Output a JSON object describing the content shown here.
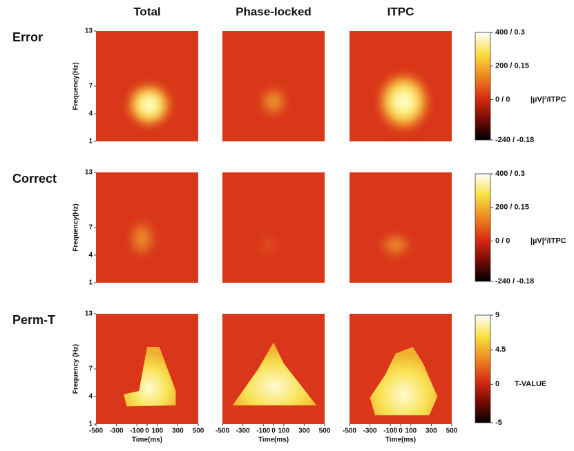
{
  "columns": [
    "Total",
    "Phase-locked",
    "ITPC"
  ],
  "rows": [
    {
      "label": "Error",
      "y_label": "Frequency(Hz)",
      "colorbar": {
        "clim": [
          -240,
          400
        ],
        "ticks": [
          {
            "value": 400,
            "label": "400 / 0.3"
          },
          {
            "value": 200,
            "label": "200 / 0.15"
          },
          {
            "value": 0,
            "label": "0 / 0"
          },
          {
            "value": -240,
            "label": "-240 / -0.18"
          }
        ],
        "unit": "|µV|²/ITPC"
      }
    },
    {
      "label": "Correct",
      "y_label": "Frequency(Hz)",
      "colorbar": {
        "clim": [
          -240,
          400
        ],
        "ticks": [
          {
            "value": 400,
            "label": "400 / 0.3"
          },
          {
            "value": 200,
            "label": "200 / 0.15"
          },
          {
            "value": 0,
            "label": "0 / 0"
          },
          {
            "value": -240,
            "label": "-240 / -0.18"
          }
        ],
        "unit": "|µV|²/ITPC"
      }
    },
    {
      "label": "Perm-T",
      "y_label": "Frequency (Hz)",
      "colorbar": {
        "clim": [
          -5,
          9
        ],
        "ticks": [
          9,
          4.5,
          0,
          -5
        ],
        "unit": "T-VALUE"
      }
    }
  ],
  "y_axis": {
    "ylim": [
      1,
      13
    ],
    "ticks": [
      1,
      4,
      7,
      13
    ]
  },
  "x_axis": {
    "label": "Time(ms)",
    "xlim": [
      -500,
      500
    ],
    "ticks": [
      -500,
      -300,
      -100,
      0,
      100,
      300,
      500
    ]
  }
}
